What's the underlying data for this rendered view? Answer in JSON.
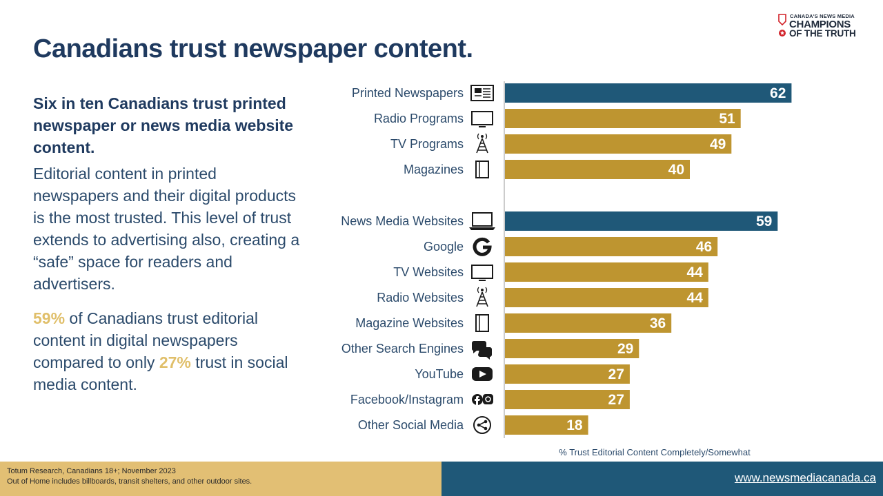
{
  "logo": {
    "small_text": "CANADA'S NEWS MEDIA",
    "line1": "CHAMPIONS",
    "line2": "OF THE TRUTH"
  },
  "title": "Canadians trust newspaper content.",
  "left": {
    "lead": "Six in ten Canadians trust printed newspaper or news media website content.",
    "paragraph": "Editorial content in printed newspapers and their digital products is the most trusted. This level of trust extends to advertising also, creating a “safe” space for readers and advertisers.",
    "stat": {
      "pct1": "59%",
      "text1": " of Canadians trust editorial content in digital newspapers compared to only ",
      "pct2": "27%",
      "text2": " trust in social media content."
    }
  },
  "colors": {
    "highlight": "#1f5878",
    "standard": "#be9530",
    "label": "#2b4a6b"
  },
  "chart_data": {
    "type": "bar",
    "orientation": "horizontal",
    "xlabel": "% Trust Editorial Content Completely/Somewhat",
    "xlim": [
      0,
      70
    ],
    "categories": [
      "Printed Newspapers",
      "Radio Programs",
      "TV Programs",
      "Magazines",
      "News Media Websites",
      "Google",
      "TV Websites",
      "Radio Websites",
      "Magazine Websites",
      "Other Search Engines",
      "YouTube",
      "Facebook/Instagram",
      "Other Social Media"
    ],
    "values": [
      62,
      51,
      49,
      40,
      59,
      46,
      44,
      44,
      36,
      29,
      27,
      27,
      18
    ],
    "highlight": [
      true,
      false,
      false,
      false,
      true,
      false,
      false,
      false,
      false,
      false,
      false,
      false,
      false
    ],
    "icons": [
      "newspaper-icon",
      "tv-icon",
      "radio-tower-icon",
      "magazine-icon",
      "laptop-icon",
      "google-icon",
      "tv-icon",
      "radio-tower-icon",
      "magazine-icon",
      "chat-bubbles-icon",
      "youtube-icon",
      "facebook-instagram-icon",
      "share-icon"
    ]
  },
  "footer": {
    "source": "Totum Research, Canadians 18+; November 2023",
    "note": "Out of Home includes billboards, transit shelters, and other outdoor sites.",
    "url": "www.newsmediacanada.ca"
  }
}
